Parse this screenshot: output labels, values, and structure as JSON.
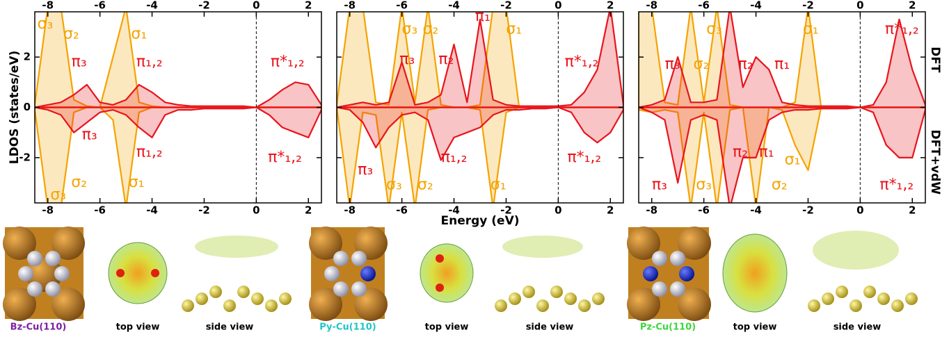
{
  "chart_data": [
    {
      "type": "line",
      "ylabel": "LDOS (states/eV)",
      "yticklabels": true,
      "x": [
        -8.5,
        -8,
        -7.5,
        -7,
        -6.5,
        -6,
        -5.5,
        -5,
        -4.5,
        -4,
        -3.5,
        -3,
        -2.5,
        -2,
        -1.5,
        -1,
        -0.5,
        0,
        0.5,
        1,
        1.5,
        2,
        2.5
      ],
      "series": [
        {
          "color": "#f5a300",
          "values": [
            0.1,
            4,
            4,
            0.3,
            0.05,
            0,
            2,
            4,
            0.2,
            0.05,
            0,
            0,
            0,
            0,
            0,
            0,
            0,
            0,
            0,
            0,
            0,
            0,
            0
          ]
        },
        {
          "color": "#e8141c",
          "values": [
            0,
            0.1,
            0.2,
            0.5,
            0.9,
            0.2,
            0.1,
            0.3,
            0.9,
            0.6,
            0.2,
            0.1,
            0.05,
            0.05,
            0.05,
            0.05,
            0.05,
            0,
            0.3,
            0.7,
            1.0,
            0.9,
            0.1
          ]
        },
        {
          "color": "#f5a300",
          "values": [
            -0.1,
            -4,
            -4,
            -0.2,
            0,
            0,
            -0.5,
            -4,
            -0.2,
            0,
            0,
            0,
            0,
            0,
            0,
            0,
            0,
            0,
            0,
            0,
            0,
            0,
            0
          ]
        },
        {
          "color": "#e8141c",
          "values": [
            0,
            -0.1,
            -0.3,
            -1.0,
            -0.6,
            -0.2,
            -0.1,
            -0.3,
            -0.8,
            -1.2,
            -0.3,
            -0.1,
            -0.1,
            -0.05,
            -0.05,
            -0.05,
            -0.05,
            0,
            -0.3,
            -0.8,
            -1.0,
            -1.2,
            -0.1
          ]
        }
      ],
      "annotations": [
        {
          "text": "σ₃",
          "x": -8.1,
          "y": 3.3,
          "color": "#f5a300"
        },
        {
          "text": "σ₂",
          "x": -7.1,
          "y": 2.9,
          "color": "#f5a300"
        },
        {
          "text": "σ₁",
          "x": -4.5,
          "y": 2.9,
          "color": "#f5a300"
        },
        {
          "text": "π₃",
          "x": -6.8,
          "y": 1.8,
          "color": "#e8141c"
        },
        {
          "text": "π₁,₂",
          "x": -4.1,
          "y": 1.8,
          "color": "#e8141c"
        },
        {
          "text": "π*₁,₂",
          "x": 1.2,
          "y": 1.8,
          "color": "#e8141c"
        },
        {
          "text": "π₃",
          "x": -6.4,
          "y": -1.1,
          "color": "#e8141c"
        },
        {
          "text": "π₁,₂",
          "x": -4.1,
          "y": -1.8,
          "color": "#e8141c"
        },
        {
          "text": "π*₁,₂",
          "x": 1.1,
          "y": -2.0,
          "color": "#e8141c"
        },
        {
          "text": "σ₂",
          "x": -6.8,
          "y": -3.0,
          "color": "#f5a300"
        },
        {
          "text": "σ₃",
          "x": -7.6,
          "y": -3.5,
          "color": "#f5a300"
        },
        {
          "text": "σ₁",
          "x": -4.6,
          "y": -3.0,
          "color": "#f5a300"
        }
      ],
      "xlim": [
        -8.5,
        2.5
      ],
      "xticks": [
        -8,
        -6,
        -4,
        -2,
        0,
        2
      ],
      "ylim": [
        -3.8,
        3.8
      ],
      "yticks": [
        -2,
        0,
        2
      ]
    },
    {
      "type": "line",
      "xlabel": "Energy (eV)",
      "yticklabels": false,
      "x": [
        -8.5,
        -8,
        -7.5,
        -7,
        -6.5,
        -6,
        -5.5,
        -5,
        -4.5,
        -4,
        -3.5,
        -3,
        -2.5,
        -2,
        -1.5,
        -1,
        -0.5,
        0,
        0.5,
        1,
        1.5,
        2,
        2.5
      ],
      "series": [
        {
          "color": "#f5a300",
          "values": [
            0.1,
            4,
            4,
            0.2,
            0.1,
            4,
            0.2,
            4,
            0.1,
            0,
            0,
            0.1,
            4,
            4,
            0,
            0,
            0,
            0,
            0,
            0,
            0,
            0,
            0
          ]
        },
        {
          "color": "#e8141c",
          "values": [
            0,
            0.1,
            0.2,
            0.1,
            0.2,
            1.8,
            0.1,
            0.2,
            0.5,
            2.5,
            0.2,
            3.5,
            0.3,
            0.1,
            0.05,
            0.05,
            0.05,
            0.05,
            0.1,
            0.6,
            1.5,
            4,
            0.1
          ]
        },
        {
          "color": "#f5a300",
          "values": [
            0,
            -4,
            -0.2,
            -0.3,
            -4,
            -0.2,
            -4,
            -0.1,
            0,
            0,
            0,
            -0.1,
            -4,
            -0.2,
            0,
            0,
            0,
            0,
            0,
            0,
            0,
            0,
            0
          ]
        },
        {
          "color": "#e8141c",
          "values": [
            0,
            -0.1,
            -0.6,
            -1.6,
            -0.8,
            -0.3,
            -0.2,
            -0.5,
            -2.1,
            -1.2,
            -1.0,
            -0.8,
            -0.3,
            -0.1,
            -0.1,
            -0.05,
            -0.05,
            0,
            -0.2,
            -1.0,
            -1.4,
            -1.0,
            -0.1
          ]
        }
      ],
      "annotations": [
        {
          "text": "σ₃",
          "x": -5.7,
          "y": 3.1,
          "color": "#f5a300"
        },
        {
          "text": "σ₂",
          "x": -4.9,
          "y": 3.1,
          "color": "#f5a300"
        },
        {
          "text": "π₁",
          "x": -2.9,
          "y": 3.6,
          "color": "#e8141c"
        },
        {
          "text": "σ₁",
          "x": -1.7,
          "y": 3.1,
          "color": "#f5a300"
        },
        {
          "text": "π₃",
          "x": -5.8,
          "y": 1.9,
          "color": "#e8141c"
        },
        {
          "text": "π₂",
          "x": -4.3,
          "y": 1.9,
          "color": "#e8141c"
        },
        {
          "text": "π*₁,₂",
          "x": 0.9,
          "y": 1.8,
          "color": "#e8141c"
        },
        {
          "text": "π₃",
          "x": -7.4,
          "y": -2.5,
          "color": "#e8141c"
        },
        {
          "text": "σ₃",
          "x": -6.3,
          "y": -3.1,
          "color": "#f5a300"
        },
        {
          "text": "σ₂",
          "x": -5.1,
          "y": -3.1,
          "color": "#f5a300"
        },
        {
          "text": "π₁,₂",
          "x": -4.0,
          "y": -2.0,
          "color": "#e8141c"
        },
        {
          "text": "σ₁",
          "x": -2.3,
          "y": -3.1,
          "color": "#f5a300"
        },
        {
          "text": "π*₁,₂",
          "x": 1.0,
          "y": -2.0,
          "color": "#e8141c"
        }
      ],
      "xlim": [
        -8.5,
        2.5
      ],
      "xticks": [
        -8,
        -6,
        -4,
        -2,
        0,
        2
      ],
      "ylim": [
        -3.8,
        3.8
      ],
      "yticks": [
        -2,
        0,
        2
      ]
    },
    {
      "type": "line",
      "right_labels": [
        "DFT",
        "DFT+vdW"
      ],
      "yticklabels": false,
      "x": [
        -8.5,
        -8,
        -7.5,
        -7,
        -6.5,
        -6,
        -5.5,
        -5,
        -4.5,
        -4,
        -3.5,
        -3,
        -2.5,
        -2,
        -1.5,
        -1,
        -0.5,
        0,
        0.5,
        1,
        1.5,
        2,
        2.5
      ],
      "series": [
        {
          "color": "#f5a300",
          "values": [
            4,
            4,
            0.2,
            0.1,
            4,
            0.2,
            4,
            0.1,
            0,
            0,
            0,
            0,
            0.2,
            4,
            0,
            0,
            0,
            0,
            0,
            0,
            0,
            0,
            0
          ]
        },
        {
          "color": "#e8141c",
          "values": [
            0,
            0.1,
            0.3,
            2.0,
            0.2,
            0.2,
            0.3,
            4,
            0.8,
            2.0,
            1.5,
            0.2,
            0.1,
            0.05,
            0.05,
            0.05,
            0.05,
            0,
            0.1,
            1.0,
            3.5,
            1.5,
            0.1
          ]
        },
        {
          "color": "#f5a300",
          "values": [
            -0.1,
            -0.2,
            -0.1,
            -0.2,
            -4,
            -0.2,
            -4,
            -0.1,
            0,
            -4,
            0,
            -0.1,
            -1.5,
            -2.5,
            0,
            0,
            0,
            0,
            0,
            0,
            0,
            0,
            0
          ]
        },
        {
          "color": "#e8141c",
          "values": [
            0,
            -0.2,
            -0.5,
            -3.0,
            -0.5,
            -0.3,
            -0.5,
            -4,
            -2.0,
            -2.0,
            -0.5,
            -0.2,
            -0.1,
            -0.1,
            -0.05,
            -0.05,
            -0.05,
            0,
            -0.2,
            -1.5,
            -2.0,
            -2.0,
            -0.1
          ]
        }
      ],
      "annotations": [
        {
          "text": "σ₃",
          "x": -5.6,
          "y": 3.1,
          "color": "#f5a300"
        },
        {
          "text": "σ₁",
          "x": -1.9,
          "y": 3.1,
          "color": "#f5a300"
        },
        {
          "text": "π*₁,₂",
          "x": 1.6,
          "y": 3.1,
          "color": "#e8141c"
        },
        {
          "text": "π₃",
          "x": -7.2,
          "y": 1.7,
          "color": "#e8141c"
        },
        {
          "text": "σ₂",
          "x": -6.1,
          "y": 1.7,
          "color": "#f5a300"
        },
        {
          "text": "π₂",
          "x": -4.4,
          "y": 1.7,
          "color": "#e8141c"
        },
        {
          "text": "π₁",
          "x": -3.0,
          "y": 1.7,
          "color": "#e8141c"
        },
        {
          "text": "π₂",
          "x": -4.6,
          "y": -1.8,
          "color": "#e8141c"
        },
        {
          "text": "π₁",
          "x": -3.6,
          "y": -1.8,
          "color": "#e8141c"
        },
        {
          "text": "σ₁",
          "x": -2.6,
          "y": -2.1,
          "color": "#f5a300"
        },
        {
          "text": "π₃",
          "x": -7.7,
          "y": -3.1,
          "color": "#e8141c"
        },
        {
          "text": "σ₃",
          "x": -6.0,
          "y": -3.1,
          "color": "#f5a300"
        },
        {
          "text": "σ₂",
          "x": -3.1,
          "y": -3.1,
          "color": "#f5a300"
        },
        {
          "text": "π*₁,₂",
          "x": 1.4,
          "y": -3.1,
          "color": "#e8141c"
        }
      ],
      "xlim": [
        -8.5,
        2.5
      ],
      "xticks": [
        -8,
        -6,
        -4,
        -2,
        0,
        2
      ],
      "ylim": [
        -3.8,
        3.8
      ],
      "yticks": [
        -2,
        0,
        2
      ]
    }
  ],
  "captions": [
    {
      "text": "Bz-Cu(110)",
      "color": "#7b1fa2"
    },
    {
      "text": "top view",
      "color": "#000000"
    },
    {
      "text": "side view",
      "color": "#000000"
    },
    {
      "text": "Py-Cu(110)",
      "color": "#22c5c8"
    },
    {
      "text": "top view",
      "color": "#000000"
    },
    {
      "text": "side view",
      "color": "#000000"
    },
    {
      "text": "Pz-Cu(110)",
      "color": "#3cd63c"
    },
    {
      "text": "top view",
      "color": "#000000"
    },
    {
      "text": "side view",
      "color": "#000000"
    }
  ]
}
